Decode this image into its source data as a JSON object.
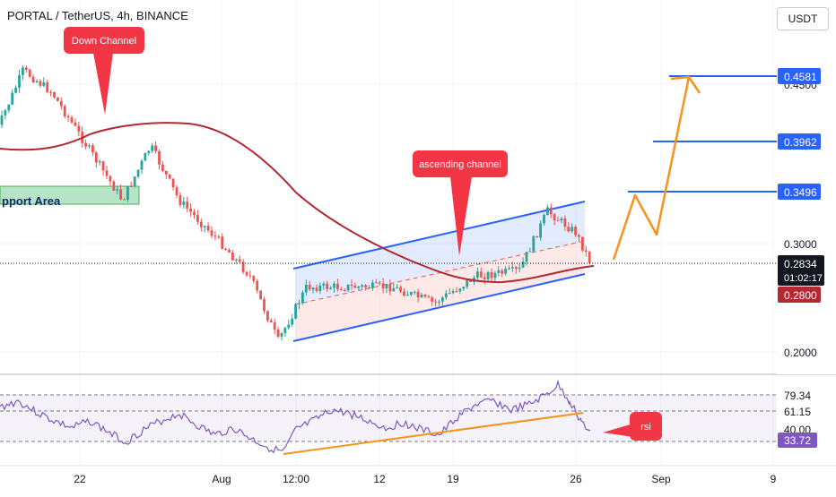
{
  "header": {
    "title": "PORTAL / TetherUS, 4h, BINANCE",
    "currency_button": "USDT"
  },
  "colors": {
    "up": "#26a69a",
    "down": "#ef5350",
    "ma": "#b22833",
    "channel": "#2962ff",
    "projection": "#f7931a",
    "rsi_line": "#7e57c2",
    "label_red": "#f23645",
    "support_fill": "#b7e3c8",
    "support_border": "#4caf50"
  },
  "price_axis": {
    "ticks": [
      "0.4500",
      "0.3000",
      "0.2000"
    ],
    "level_labels": [
      {
        "text": "0.4581",
        "price": 0.4581,
        "color": "#2962ff"
      },
      {
        "text": "0.3962",
        "price": 0.3962,
        "color": "#2962ff"
      },
      {
        "text": "0.3496",
        "price": 0.3496,
        "color": "#2962ff"
      }
    ],
    "current_price": "0.2834",
    "countdown": "01:02:17",
    "ma_value": "0.2800"
  },
  "rsi_axis": {
    "ticks": [
      "79.34",
      "61.15",
      "40.00"
    ],
    "current": "33.72"
  },
  "time_axis": {
    "labels": [
      "22",
      "Aug",
      "12:00",
      "12",
      "19",
      "26",
      "Sep",
      "9"
    ]
  },
  "annotations": {
    "down_channel": "Down Channel",
    "ascending_channel": "ascending channel",
    "rsi": "rsi",
    "support_area": "pport Area"
  },
  "chart_data": {
    "type": "candlestick",
    "symbol": "PORTAL / TetherUS",
    "timeframe": "4h",
    "exchange": "BINANCE",
    "price_levels": [
      0.4581,
      0.3962,
      0.3496
    ],
    "current_price": 0.2834,
    "moving_average": 0.28,
    "price_path_key_points": [
      {
        "date": "Jul 16",
        "price": 0.4
      },
      {
        "date": "Jul 18",
        "price": 0.46
      },
      {
        "date": "Jul 20",
        "price": 0.44
      },
      {
        "date": "Jul 23",
        "price": 0.38
      },
      {
        "date": "Jul 25",
        "price": 0.34
      },
      {
        "date": "Jul 27",
        "price": 0.39
      },
      {
        "date": "Jul 29",
        "price": 0.34
      },
      {
        "date": "Aug 1",
        "price": 0.3
      },
      {
        "date": "Aug 3",
        "price": 0.27
      },
      {
        "date": "Aug 5",
        "price": 0.21
      },
      {
        "date": "Aug 7",
        "price": 0.26
      },
      {
        "date": "Aug 10",
        "price": 0.26
      },
      {
        "date": "Aug 13",
        "price": 0.26
      },
      {
        "date": "Aug 16",
        "price": 0.245
      },
      {
        "date": "Aug 19",
        "price": 0.27
      },
      {
        "date": "Aug 22",
        "price": 0.275
      },
      {
        "date": "Aug 24",
        "price": 0.33
      },
      {
        "date": "Aug 26",
        "price": 0.31
      },
      {
        "date": "Aug 27",
        "price": 0.2834
      }
    ],
    "projection_path": [
      {
        "date": "Aug 28",
        "price": 0.283
      },
      {
        "date": "Aug 30",
        "price": 0.35
      },
      {
        "date": "Sep 1",
        "price": 0.305
      },
      {
        "date": "Sep 4",
        "price": 0.4581
      }
    ],
    "rsi": {
      "current": 33.72,
      "levels": [
        79.34,
        61.15,
        40.0
      ]
    }
  }
}
